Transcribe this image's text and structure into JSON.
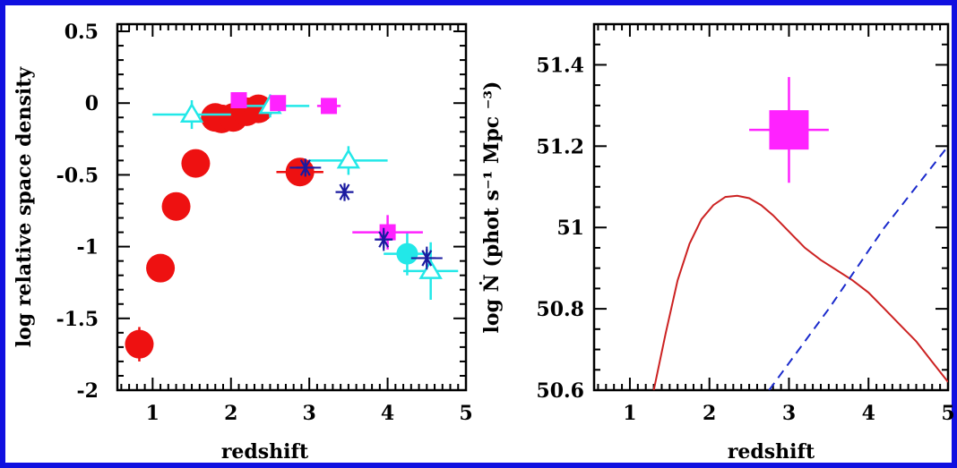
{
  "colors": {
    "frame": "#1010e0",
    "red": "#ee1111",
    "cyan": "#22e8e8",
    "magenta": "#ff22ff",
    "navy": "#1a1aa0",
    "curve": "#cc2222",
    "dashed": "#1a2acc"
  },
  "chart_data": [
    {
      "type": "scatter",
      "xlabel": "redshift",
      "ylabel": "log relative space density",
      "xlim": [
        0.55,
        5.0
      ],
      "ylim": [
        -2.0,
        0.55
      ],
      "x_ticks": [
        "1",
        "2",
        "3",
        "4",
        "5"
      ],
      "y_ticks": [
        "0.5",
        "0",
        "-0.5",
        "-1",
        "-1.5",
        "-2"
      ],
      "series": [
        {
          "marker": "filled-circle",
          "color": "red",
          "points": [
            {
              "x": 0.83,
              "y": -1.68,
              "xerr": 0.05,
              "yerr": 0.12
            },
            {
              "x": 1.1,
              "y": -1.15,
              "xerr": 0.05,
              "yerr": 0.05
            },
            {
              "x": 1.3,
              "y": -0.72,
              "xerr": 0.05,
              "yerr": 0.05
            },
            {
              "x": 1.55,
              "y": -0.42,
              "xerr": 0.05,
              "yerr": 0.05
            },
            {
              "x": 1.8,
              "y": -0.1,
              "xerr": 0.05,
              "yerr": 0.03
            },
            {
              "x": 1.88,
              "y": -0.11,
              "xerr": 0.05,
              "yerr": 0.03
            },
            {
              "x": 2.03,
              "y": -0.1,
              "xerr": 0.05,
              "yerr": 0.03
            },
            {
              "x": 2.2,
              "y": -0.06,
              "xerr": 0.05,
              "yerr": 0.03
            },
            {
              "x": 2.35,
              "y": -0.04,
              "xerr": 0.05,
              "yerr": 0.03
            },
            {
              "x": 2.88,
              "y": -0.48,
              "xerr": 0.3,
              "yerr": 0.05
            }
          ]
        },
        {
          "marker": "open-triangle",
          "color": "cyan",
          "points": [
            {
              "x": 1.5,
              "y": -0.08,
              "xerr": 0.5,
              "yerr": 0.1
            },
            {
              "x": 2.5,
              "y": -0.02,
              "xerr": 0.5,
              "yerr": 0.08
            },
            {
              "x": 3.5,
              "y": -0.4,
              "xerr": 0.5,
              "yerr": 0.1
            }
          ]
        },
        {
          "marker": "filled-circle",
          "color": "cyan",
          "points": [
            {
              "x": 4.25,
              "y": -1.05,
              "xerr": 0.3,
              "yerr": 0.15
            }
          ]
        },
        {
          "marker": "open-triangle",
          "color": "cyan",
          "points": [
            {
              "x": 4.55,
              "y": -1.17,
              "xerr": 0.35,
              "yerr": 0.2
            }
          ]
        },
        {
          "marker": "filled-square",
          "color": "magenta",
          "points": [
            {
              "x": 2.1,
              "y": 0.02,
              "xerr": 0.1,
              "yerr": 0.04
            },
            {
              "x": 2.6,
              "y": 0.0,
              "xerr": 0.1,
              "yerr": 0.04
            },
            {
              "x": 3.25,
              "y": -0.02,
              "xerr": 0.15,
              "yerr": 0.04
            },
            {
              "x": 4.0,
              "y": -0.9,
              "xerr": 0.45,
              "yerr": 0.12
            }
          ]
        },
        {
          "marker": "asterisk",
          "color": "navy",
          "points": [
            {
              "x": 2.95,
              "y": -0.45,
              "xerr": 0.2,
              "yerr": 0.05
            },
            {
              "x": 3.45,
              "y": -0.62,
              "xerr": 0.05,
              "yerr": 0.05
            },
            {
              "x": 3.95,
              "y": -0.95,
              "xerr": 0.1,
              "yerr": 0.08
            },
            {
              "x": 4.5,
              "y": -1.08,
              "xerr": 0.2,
              "yerr": 0.08
            }
          ]
        }
      ]
    },
    {
      "type": "line",
      "xlabel": "redshift",
      "ylabel": "log Ṅ (phot s⁻¹ Mpc ⁻³)",
      "xlim": [
        0.55,
        5.0
      ],
      "ylim": [
        50.6,
        51.5
      ],
      "x_ticks": [
        "1",
        "2",
        "3",
        "4",
        "5"
      ],
      "y_ticks": [
        "51.4",
        "51.2",
        "51",
        "50.8",
        "50.6"
      ],
      "series": [
        {
          "style": "solid",
          "color": "curve",
          "x": [
            1.3,
            1.45,
            1.6,
            1.75,
            1.9,
            2.05,
            2.2,
            2.35,
            2.5,
            2.65,
            2.8,
            3.0,
            3.2,
            3.4,
            3.6,
            3.8,
            4.0,
            4.2,
            4.4,
            4.6,
            4.8,
            5.0
          ],
          "y": [
            50.6,
            50.74,
            50.87,
            50.96,
            51.02,
            51.055,
            51.075,
            51.078,
            51.072,
            51.055,
            51.03,
            50.99,
            50.95,
            50.92,
            50.895,
            50.87,
            50.84,
            50.8,
            50.76,
            50.72,
            50.67,
            50.62
          ]
        },
        {
          "style": "dashed",
          "color": "dashed",
          "x": [
            2.75,
            3.5,
            4.2,
            5.0
          ],
          "y": [
            50.6,
            50.8,
            51.0,
            51.2
          ]
        },
        {
          "marker": "filled-square",
          "color": "magenta",
          "points": [
            {
              "x": 3.0,
              "y": 51.24,
              "xerr": 0.5,
              "yerr": 0.13
            }
          ]
        }
      ]
    }
  ]
}
